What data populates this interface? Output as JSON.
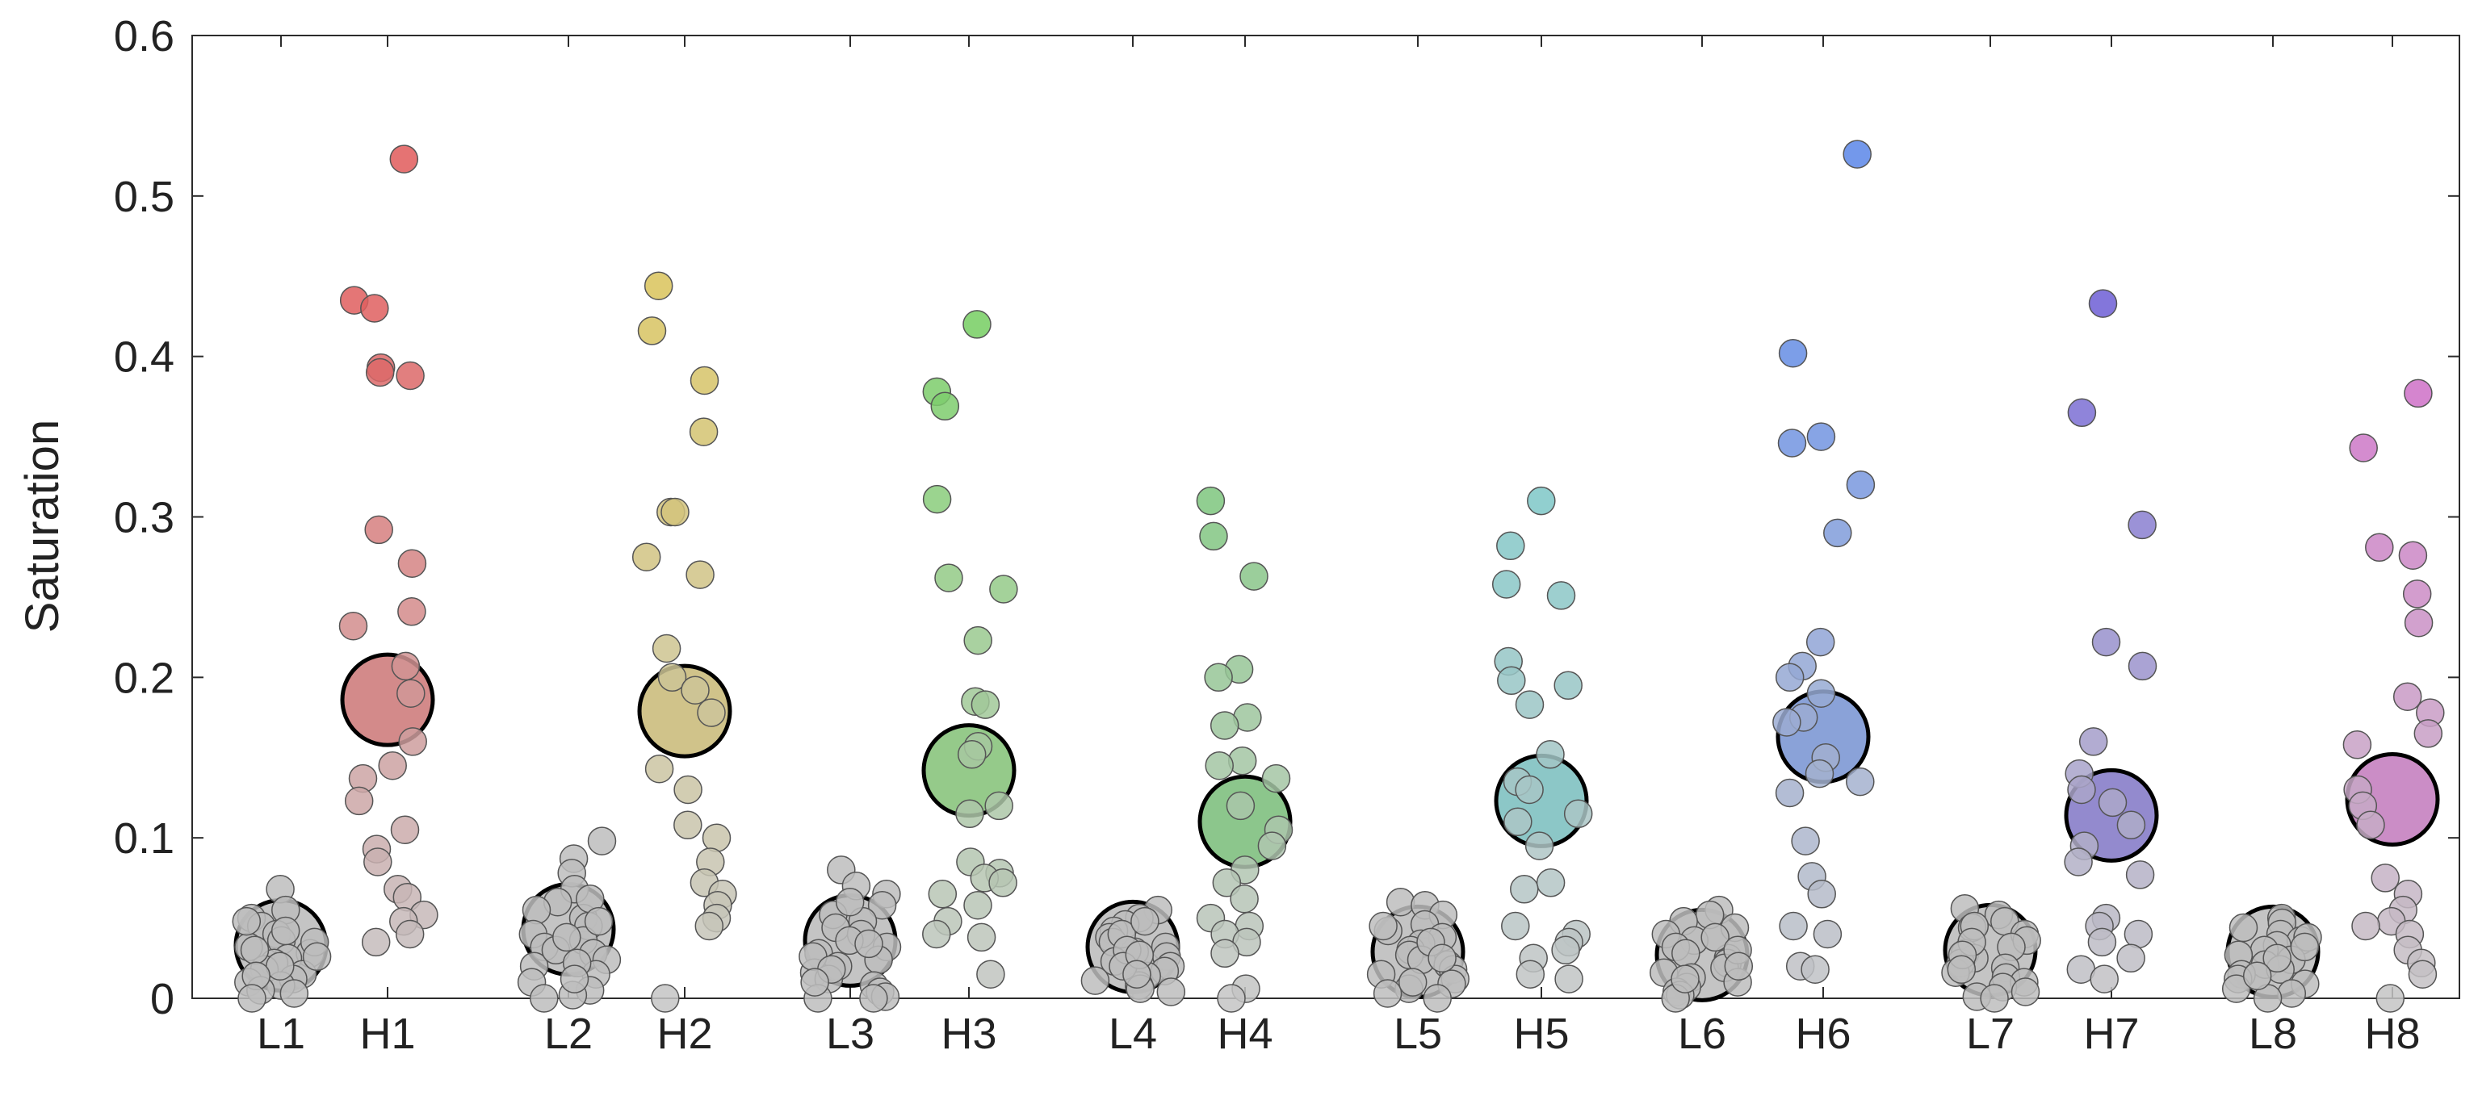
{
  "chart_data": {
    "type": "scatter",
    "title": "",
    "xlabel": "",
    "ylabel": "Saturation",
    "ylim": [
      0,
      0.6
    ],
    "yticks": [
      "0",
      "0.1",
      "0.2",
      "0.3",
      "0.4",
      "0.5",
      "0.6"
    ],
    "ytick_values": [
      0,
      0.1,
      0.2,
      0.3,
      0.4,
      0.5,
      0.6
    ],
    "grid": false,
    "mean_marker_size": "large circle with black outline",
    "groups": [
      {
        "label": "L1",
        "color": "#bdbdbd",
        "mean": 0.033,
        "values": [
          0.068,
          0.055,
          0.05,
          0.045,
          0.04,
          0.036,
          0.032,
          0.028,
          0.025,
          0.022,
          0.018,
          0.015,
          0.012,
          0.01,
          0.008,
          0.005,
          0.003,
          0.03,
          0.042,
          0.02,
          0.014,
          0.048,
          0.035,
          0.026,
          0.0
        ]
      },
      {
        "label": "H1",
        "color": "#e05a5a",
        "mean": 0.186,
        "values": [
          0.523,
          0.435,
          0.43,
          0.393,
          0.39,
          0.388,
          0.292,
          0.271,
          0.241,
          0.232,
          0.207,
          0.19,
          0.16,
          0.145,
          0.137,
          0.123,
          0.105,
          0.093,
          0.085,
          0.068,
          0.063,
          0.052,
          0.048,
          0.04,
          0.035
        ]
      },
      {
        "label": "L2",
        "color": "#bdbdbd",
        "mean": 0.043,
        "values": [
          0.098,
          0.087,
          0.078,
          0.068,
          0.06,
          0.055,
          0.05,
          0.045,
          0.04,
          0.036,
          0.032,
          0.028,
          0.024,
          0.02,
          0.015,
          0.01,
          0.005,
          0.002,
          0.0,
          0.062,
          0.03,
          0.048,
          0.038,
          0.022,
          0.012
        ]
      },
      {
        "label": "H2",
        "color": "#d9c35a",
        "mean": 0.179,
        "values": [
          0.444,
          0.416,
          0.385,
          0.353,
          0.303,
          0.303,
          0.275,
          0.264,
          0.218,
          0.2,
          0.192,
          0.178,
          0.143,
          0.13,
          0.108,
          0.1,
          0.085,
          0.072,
          0.065,
          0.058,
          0.05,
          0.045,
          0.0
        ]
      },
      {
        "label": "L3",
        "color": "#bdbdbd",
        "mean": 0.036,
        "values": [
          0.08,
          0.07,
          0.065,
          0.058,
          0.052,
          0.048,
          0.044,
          0.04,
          0.036,
          0.032,
          0.028,
          0.024,
          0.02,
          0.016,
          0.012,
          0.008,
          0.004,
          0.001,
          0.0,
          0.0,
          0.06,
          0.034,
          0.026,
          0.018,
          0.01
        ]
      },
      {
        "label": "H3",
        "color": "#6fcf5a",
        "mean": 0.142,
        "values": [
          0.42,
          0.378,
          0.369,
          0.311,
          0.262,
          0.255,
          0.223,
          0.185,
          0.183,
          0.157,
          0.152,
          0.12,
          0.115,
          0.085,
          0.078,
          0.075,
          0.072,
          0.065,
          0.058,
          0.048,
          0.04,
          0.038,
          0.015
        ]
      },
      {
        "label": "L4",
        "color": "#bdbdbd",
        "mean": 0.032,
        "values": [
          0.055,
          0.05,
          0.046,
          0.042,
          0.038,
          0.035,
          0.032,
          0.029,
          0.026,
          0.023,
          0.02,
          0.017,
          0.014,
          0.011,
          0.008,
          0.006,
          0.004,
          0.04,
          0.03,
          0.02,
          0.048,
          0.027,
          0.015
        ]
      },
      {
        "label": "H4",
        "color": "#5fc75f",
        "mean": 0.11,
        "values": [
          0.31,
          0.288,
          0.263,
          0.205,
          0.2,
          0.175,
          0.17,
          0.148,
          0.145,
          0.137,
          0.12,
          0.105,
          0.095,
          0.08,
          0.072,
          0.062,
          0.05,
          0.045,
          0.04,
          0.035,
          0.028,
          0.006,
          0.0
        ]
      },
      {
        "label": "L5",
        "color": "#bdbdbd",
        "mean": 0.029,
        "values": [
          0.06,
          0.058,
          0.052,
          0.046,
          0.042,
          0.038,
          0.034,
          0.03,
          0.027,
          0.024,
          0.021,
          0.018,
          0.015,
          0.012,
          0.009,
          0.006,
          0.003,
          0.0,
          0.045,
          0.035,
          0.025,
          0.01
        ]
      },
      {
        "label": "H5",
        "color": "#5fc9c9",
        "mean": 0.123,
        "values": [
          0.31,
          0.282,
          0.258,
          0.251,
          0.21,
          0.198,
          0.195,
          0.183,
          0.152,
          0.135,
          0.13,
          0.115,
          0.11,
          0.095,
          0.072,
          0.068,
          0.045,
          0.04,
          0.035,
          0.03,
          0.025,
          0.015,
          0.012
        ]
      },
      {
        "label": "L6",
        "color": "#bdbdbd",
        "mean": 0.027,
        "values": [
          0.055,
          0.052,
          0.048,
          0.044,
          0.04,
          0.036,
          0.032,
          0.028,
          0.025,
          0.022,
          0.019,
          0.016,
          0.013,
          0.01,
          0.007,
          0.004,
          0.002,
          0.0,
          0.038,
          0.03,
          0.02,
          0.012
        ]
      },
      {
        "label": "H6",
        "color": "#5a86e8",
        "mean": 0.163,
        "values": [
          0.526,
          0.402,
          0.35,
          0.346,
          0.32,
          0.29,
          0.222,
          0.207,
          0.2,
          0.19,
          0.175,
          0.172,
          0.15,
          0.14,
          0.135,
          0.128,
          0.098,
          0.076,
          0.065,
          0.045,
          0.04,
          0.02,
          0.018
        ]
      },
      {
        "label": "L7",
        "color": "#bdbdbd",
        "mean": 0.03,
        "values": [
          0.056,
          0.052,
          0.048,
          0.044,
          0.04,
          0.036,
          0.032,
          0.028,
          0.025,
          0.022,
          0.019,
          0.016,
          0.013,
          0.01,
          0.007,
          0.004,
          0.001,
          0.0,
          0.045,
          0.035,
          0.027,
          0.018
        ]
      },
      {
        "label": "H7",
        "color": "#6a5ad6",
        "mean": 0.114,
        "values": [
          0.433,
          0.365,
          0.295,
          0.222,
          0.207,
          0.16,
          0.14,
          0.13,
          0.122,
          0.108,
          0.095,
          0.085,
          0.077,
          0.05,
          0.045,
          0.04,
          0.035,
          0.025,
          0.018,
          0.012
        ]
      },
      {
        "label": "L8",
        "color": "#bdbdbd",
        "mean": 0.029,
        "values": [
          0.05,
          0.047,
          0.044,
          0.04,
          0.036,
          0.033,
          0.03,
          0.027,
          0.024,
          0.021,
          0.018,
          0.015,
          0.012,
          0.009,
          0.006,
          0.003,
          0.0,
          0.038,
          0.032,
          0.025,
          0.014
        ]
      },
      {
        "label": "H8",
        "color": "#d060c8",
        "mean": 0.124,
        "values": [
          0.377,
          0.343,
          0.281,
          0.276,
          0.252,
          0.234,
          0.188,
          0.178,
          0.165,
          0.158,
          0.13,
          0.12,
          0.108,
          0.075,
          0.065,
          0.055,
          0.048,
          0.045,
          0.04,
          0.03,
          0.022,
          0.015,
          0.0
        ]
      }
    ]
  }
}
